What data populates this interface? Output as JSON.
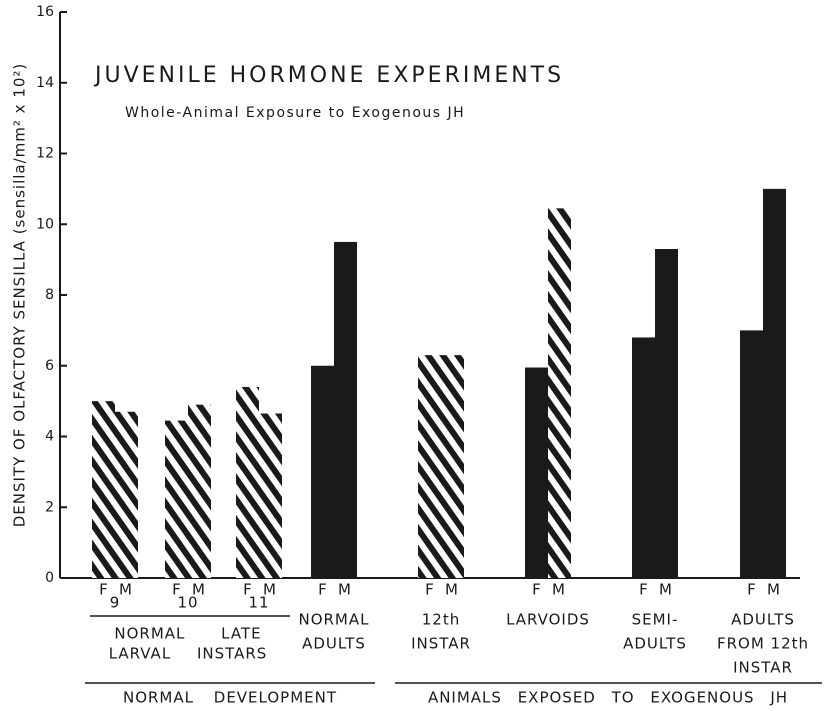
{
  "chart_data": {
    "type": "bar",
    "title": "JUVENILE HORMONE EXPERIMENTS",
    "subtitle": "Whole-Animal Exposure to Exogenous JH",
    "y_label": "DENSITY OF OLFACTORY SENSILLA (sensilla/mm² x 10²)",
    "categories": [
      [
        "9"
      ],
      [
        "10"
      ],
      [
        "11"
      ],
      [
        "NORMAL",
        "ADULTS"
      ],
      [
        "12th",
        "INSTAR"
      ],
      [
        "LARVOIDS"
      ],
      [
        "SEMI-",
        "ADULTS"
      ],
      [
        "ADULTS",
        "FROM 12th",
        "INSTAR"
      ]
    ],
    "series": [
      {
        "name": "F",
        "color": "#1a1a1a",
        "values": [
          5.0,
          4.45,
          5.4,
          6.0,
          6.3,
          5.95,
          6.8,
          7.0
        ],
        "styles": [
          "hatched",
          "hatched",
          "hatched",
          "solid",
          "hatched",
          "solid",
          "solid",
          "solid"
        ]
      },
      {
        "name": "M",
        "color": "#1a1a1a",
        "values": [
          4.7,
          4.9,
          4.65,
          9.5,
          6.3,
          10.45,
          9.3,
          11.0
        ],
        "styles": [
          "hatched",
          "hatched",
          "hatched",
          "solid",
          "hatched",
          "hatched",
          "solid",
          "solid"
        ]
      }
    ],
    "subgroup_label": [
      "NORMAL LATE",
      "LARVAL INSTARS"
    ],
    "groups": [
      "NORMAL DEVELOPMENT",
      "ANIMALS EXPOSED TO EXOGENOUS JH"
    ],
    "ylim": [
      0,
      16
    ],
    "yticks": [
      0,
      2,
      4,
      6,
      8,
      10,
      12,
      14,
      16
    ]
  }
}
